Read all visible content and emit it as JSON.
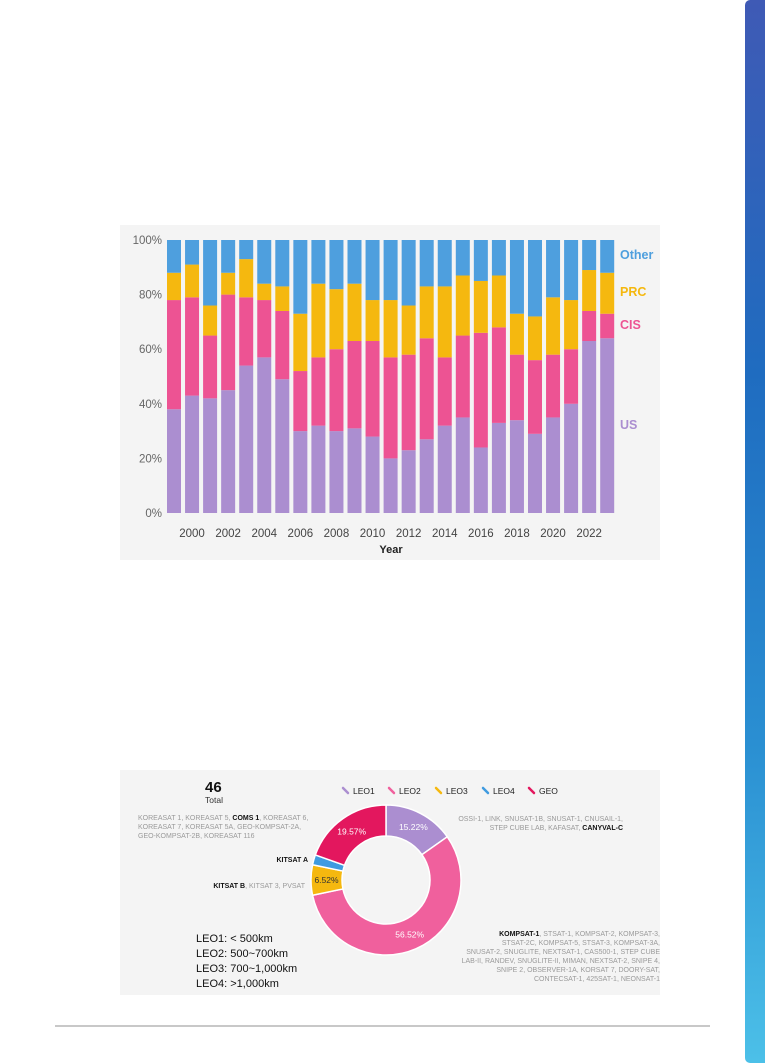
{
  "colors": {
    "US": "#ab8ed0",
    "CIS": "#ed5393",
    "PRC": "#f5b80f",
    "Other": "#4e9fde",
    "LEO1": "#ab8ed0",
    "LEO2": "#f0609d",
    "LEO3": "#f5b80f",
    "LEO4": "#3f9be0",
    "GEO": "#e3175e",
    "side_bar_top": "#3f5ab5",
    "side_bar_bottom": "#4cc0e8"
  },
  "chart_data": [
    {
      "type": "bar",
      "stacked": true,
      "title": "",
      "xlabel": "Year",
      "ylabel": "",
      "ylim": [
        0,
        100
      ],
      "ytick_labels": [
        "0%",
        "20%",
        "40%",
        "60%",
        "80%",
        "100%"
      ],
      "yticks": [
        0,
        20,
        40,
        60,
        80,
        100
      ],
      "xtick_labels": [
        "2000",
        "2002",
        "2004",
        "2006",
        "2008",
        "2010",
        "2012",
        "2014",
        "2016",
        "2018",
        "2020",
        "2022"
      ],
      "categories": [
        1999,
        2000,
        2001,
        2002,
        2003,
        2004,
        2005,
        2006,
        2007,
        2008,
        2009,
        2010,
        2011,
        2012,
        2013,
        2014,
        2015,
        2016,
        2017,
        2018,
        2019,
        2020,
        2021,
        2022,
        2023
      ],
      "series": [
        {
          "name": "US",
          "values": [
            38,
            43,
            42,
            45,
            54,
            57,
            49,
            30,
            32,
            30,
            31,
            28,
            20,
            23,
            27,
            32,
            35,
            24,
            33,
            34,
            29,
            35,
            40,
            63,
            64
          ]
        },
        {
          "name": "CIS",
          "values": [
            40,
            36,
            23,
            35,
            25,
            21,
            25,
            22,
            25,
            30,
            32,
            35,
            37,
            35,
            37,
            25,
            30,
            42,
            35,
            24,
            27,
            23,
            20,
            11,
            9
          ]
        },
        {
          "name": "PRC",
          "values": [
            10,
            12,
            11,
            8,
            14,
            6,
            9,
            21,
            27,
            22,
            21,
            15,
            21,
            18,
            19,
            26,
            22,
            19,
            19,
            15,
            16,
            21,
            18,
            15,
            15
          ]
        },
        {
          "name": "Other",
          "values": [
            12,
            9,
            24,
            12,
            7,
            16,
            17,
            27,
            16,
            18,
            16,
            22,
            22,
            24,
            17,
            17,
            13,
            15,
            13,
            27,
            28,
            21,
            22,
            11,
            12
          ]
        }
      ],
      "legend_position": "right, next to bars",
      "grid": false
    },
    {
      "type": "pie",
      "donut": true,
      "total_value": "46",
      "total_label": "Total",
      "legend": [
        "LEO1",
        "LEO2",
        "LEO3",
        "LEO4",
        "GEO"
      ],
      "legend_position": "top",
      "slices": [
        {
          "name": "LEO1",
          "value": 15.22,
          "label": "15.22%"
        },
        {
          "name": "LEO2",
          "value": 56.52,
          "label": "56.52%"
        },
        {
          "name": "LEO3",
          "value": 6.52,
          "label": "6.52%"
        },
        {
          "name": "LEO4",
          "value": 2.17,
          "label": ""
        },
        {
          "name": "GEO",
          "value": 19.57,
          "label": "19.57%"
        }
      ],
      "annotations": {
        "geo": {
          "lines": [
            [
              {
                "t": "KOREASAT 1, KOREASAT 5, ",
                "b": false
              },
              {
                "t": "COMS 1",
                "b": true
              },
              {
                "t": ", KOREASAT 6,",
                "b": false
              }
            ],
            [
              {
                "t": "KOREASAT 7, KOREASAT 5A, GEO-KOMPSAT-2A,",
                "b": false
              }
            ],
            [
              {
                "t": "GEO-KOMPSAT-2B, KOREASAT 116",
                "b": false
              }
            ]
          ]
        },
        "leo4": {
          "lines": [
            [
              {
                "t": "KITSAT A",
                "b": true
              }
            ]
          ]
        },
        "leo3": {
          "lines": [
            [
              {
                "t": "KITSAT B",
                "b": true
              },
              {
                "t": ", KITSAT 3, PVSAT",
                "b": false
              }
            ]
          ]
        },
        "leo1": {
          "lines": [
            [
              {
                "t": "OSSI-1, LINK, SNUSAT-1B, SNUSAT-1, CNUSAIL-1,",
                "b": false
              }
            ],
            [
              {
                "t": "STEP CUBE LAB, KAFASAT, ",
                "b": false
              },
              {
                "t": "CANYVAL-C",
                "b": true
              }
            ]
          ]
        },
        "leo2": {
          "lines": [
            [
              {
                "t": "KOMPSAT-1",
                "b": true
              },
              {
                "t": ", STSAT-1, KOMPSAT-2, KOMPSAT-3,",
                "b": false
              }
            ],
            [
              {
                "t": "STSAT-2C, KOMPSAT-5, STSAT-3, KOMPSAT-3A,",
                "b": false
              }
            ],
            [
              {
                "t": "SNUSAT-2, SNUGLITE, NEXTSAT-1, CAS500-1, STEP CUBE",
                "b": false
              }
            ],
            [
              {
                "t": "LAB-II, RANDEV, SNUGLITE-II, MIMAN, NEXTSAT-2, SNIPE 4,",
                "b": false
              }
            ],
            [
              {
                "t": "SNIPE 2, OBSERVER-1A, KORSAT 7, DOORY-SAT,",
                "b": false
              }
            ],
            [
              {
                "t": "CONTECSAT-1, 425SAT-1, NEONSAT-1",
                "b": false
              }
            ]
          ]
        }
      },
      "orbit_key": [
        "LEO1: < 500km",
        "LEO2: 500~700km",
        "LEO3: 700~1,000km",
        "LEO4: >1,000km"
      ]
    }
  ]
}
